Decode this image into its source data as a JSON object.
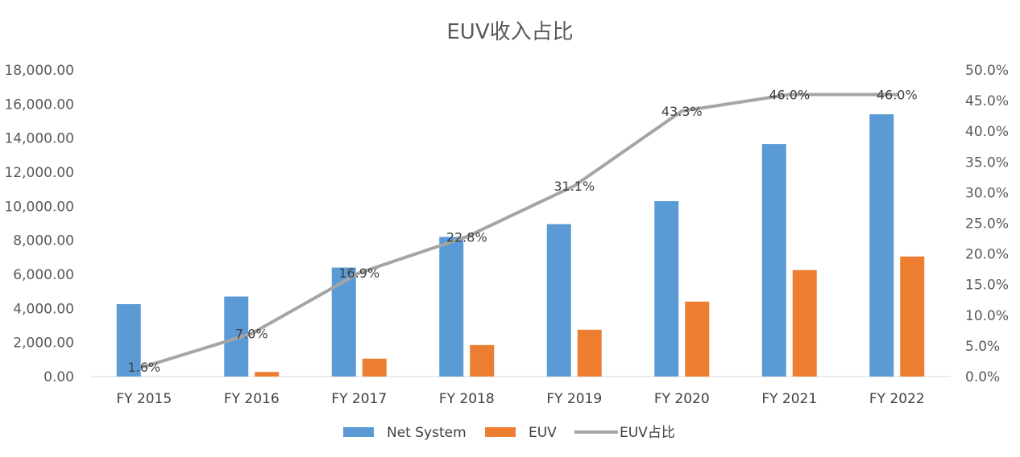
{
  "chart_data": {
    "type": "bar",
    "title": "EUV收入占比",
    "categories": [
      "FY 2015",
      "FY 2016",
      "FY 2017",
      "FY 2018",
      "FY 2019",
      "FY 2020",
      "FY 2021",
      "FY 2022"
    ],
    "series": [
      {
        "name": "Net System",
        "kind": "bar",
        "axis": "left",
        "color": "#5B9BD5",
        "values": [
          4250,
          4700,
          6400,
          8200,
          8950,
          10300,
          13650,
          15400
        ]
      },
      {
        "name": "EUV",
        "kind": "bar",
        "axis": "left",
        "color": "#ED7D31",
        "values": [
          0,
          270,
          1050,
          1850,
          2750,
          4400,
          6250,
          7050
        ]
      },
      {
        "name": "EUV占比",
        "kind": "line",
        "axis": "right",
        "color": "#A5A5A5",
        "values": [
          1.6,
          7.0,
          16.9,
          22.8,
          31.1,
          43.3,
          46.0,
          46.0
        ],
        "labels": [
          "1.6%",
          "7.0%",
          "16.9%",
          "22.8%",
          "31.1%",
          "43.3%",
          "46.0%",
          "46.0%"
        ]
      }
    ],
    "y_left": {
      "min": 0,
      "max": 18000,
      "step": 2000,
      "ticks": [
        "0.00",
        "2,000.00",
        "4,000.00",
        "6,000.00",
        "8,000.00",
        "10,000.00",
        "12,000.00",
        "14,000.00",
        "16,000.00",
        "18,000.00"
      ]
    },
    "y_right": {
      "min": 0,
      "max": 50,
      "step": 5,
      "ticks": [
        "0.0%",
        "5.0%",
        "10.0%",
        "15.0%",
        "20.0%",
        "25.0%",
        "30.0%",
        "35.0%",
        "40.0%",
        "45.0%",
        "50.0%"
      ]
    },
    "grid": false,
    "legend": {
      "position": "bottom",
      "entries": [
        "Net System",
        "EUV",
        "EUV占比"
      ]
    }
  }
}
